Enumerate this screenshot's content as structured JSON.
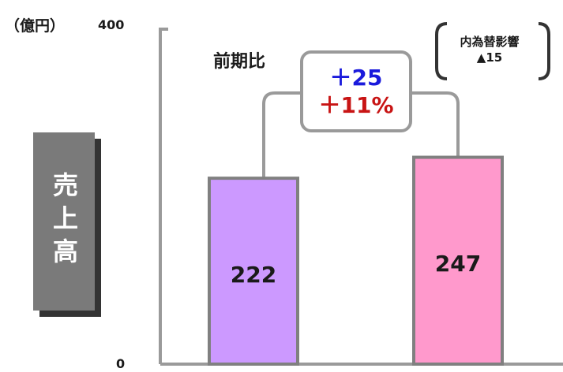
{
  "chart_data": {
    "type": "bar",
    "unit_label": "（億円）",
    "ylabel": "売上高",
    "ylim": [
      0,
      400
    ],
    "yticks": [
      "400",
      "0"
    ],
    "categories": [
      "",
      ""
    ],
    "values": [
      222,
      247
    ],
    "value_labels": [
      "222",
      "247"
    ],
    "bar_colors": [
      "#cc99ff",
      "#ff99cc"
    ],
    "annotations": {
      "comparison_label": "前期比",
      "difference": "＋25",
      "difference_percent": "＋11%",
      "fx_impact_label": "内為替影響",
      "fx_impact_value": "▲15"
    },
    "colors": {
      "difference": "#1a1adc",
      "difference_percent": "#c81414",
      "axis": "#9a9a9a"
    }
  }
}
